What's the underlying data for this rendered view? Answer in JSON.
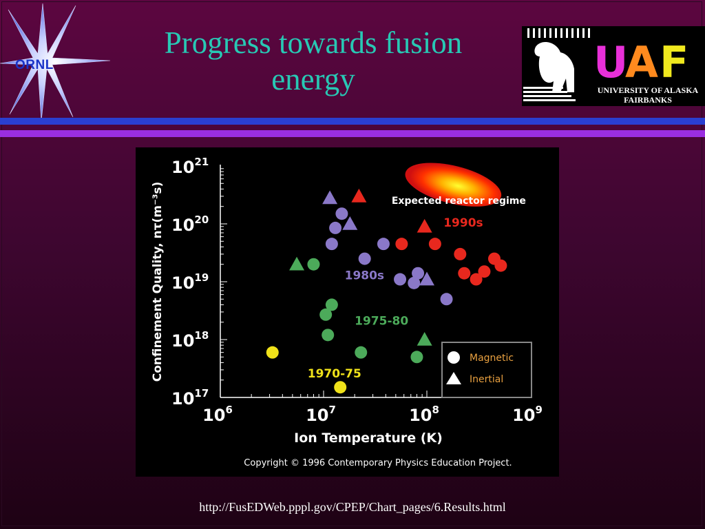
{
  "slide": {
    "title": "Progress towards fusion energy",
    "url": "http://FusEDWeb.pppl.gov/CPEP/Chart_pages/6.Results.html"
  },
  "logos": {
    "ornl": "ORNL",
    "uaf_letters": [
      "U",
      "A",
      "F"
    ],
    "uaf_name_line1": "UNIVERSITY OF ALASKA",
    "uaf_name_line2": "FAIRBANKS"
  },
  "colors": {
    "title": "#28c8b4",
    "magnetic_1970_75": "#f0e21a",
    "magnetic_1975_80": "#4caa5a",
    "magnetic_1980s": "#8a78c8",
    "magnetic_1990s": "#e8281e"
  },
  "chart_data": {
    "type": "scatter",
    "xlabel": "Ion Temperature (K)",
    "ylabel": "Confinement Quality, nτ(m⁻³s)",
    "x_scale": "log",
    "y_scale": "log",
    "xlim": [
      1000000.0,
      1000000000.0
    ],
    "ylim": [
      1e+17,
      1e+21
    ],
    "x_ticks": [
      {
        "value": 1000000.0,
        "mant": "10",
        "exp": "6"
      },
      {
        "value": 10000000.0,
        "mant": "10",
        "exp": "7"
      },
      {
        "value": 100000000.0,
        "mant": "10",
        "exp": "8"
      },
      {
        "value": 1000000000.0,
        "mant": "10",
        "exp": "9"
      }
    ],
    "y_ticks": [
      {
        "value": 1e+17,
        "mant": "10",
        "exp": "17"
      },
      {
        "value": 1e+18,
        "mant": "10",
        "exp": "18"
      },
      {
        "value": 1e+19,
        "mant": "10",
        "exp": "19"
      },
      {
        "value": 1e+20,
        "mant": "10",
        "exp": "20"
      },
      {
        "value": 1e+21,
        "mant": "10",
        "exp": "21"
      }
    ],
    "grid": false,
    "legend": {
      "placement": "bottom-right",
      "entries": [
        "Magnetic",
        "Inertial"
      ]
    },
    "region": {
      "label": "Expected reactor regime",
      "x_range": [
        60000000.0,
        1000000000.0
      ],
      "y_range": [
        2.5e+20,
        9e+20
      ]
    },
    "copyright": "Copyright © 1996 Contemporary Physics Education Project.",
    "series": [
      {
        "name": "1970-75",
        "color": "#f0e21a",
        "label_pos": {
          "x": 7000000.0,
          "y": 2.2e+17
        },
        "magnetic": [
          [
            3200000.0,
            6e+17
          ],
          [
            14500000.0,
            1.5e+17
          ]
        ],
        "inertial": []
      },
      {
        "name": "1975-80",
        "color": "#4caa5a",
        "label_pos": {
          "x": 20000000.0,
          "y": 1.8e+18
        },
        "magnetic": [
          [
            8000000.0,
            2e+19
          ],
          [
            12000000.0,
            4e+18
          ],
          [
            10500000.0,
            2.7e+18
          ],
          [
            11000000.0,
            1.2e+18
          ],
          [
            23000000.0,
            6e+17
          ],
          [
            80000000.0,
            5e+17
          ]
        ],
        "inertial": [
          [
            5500000.0,
            2e+19
          ],
          [
            95000000.0,
            1e+18
          ]
        ]
      },
      {
        "name": "1980s",
        "color": "#8a78c8",
        "label_pos": {
          "x": 16000000.0,
          "y": 1.1e+19
        },
        "magnetic": [
          [
            15000000.0,
            1.5e+20
          ],
          [
            13000000.0,
            8.5e+19
          ],
          [
            12000000.0,
            4.5e+19
          ],
          [
            25000000.0,
            2.5e+19
          ],
          [
            38000000.0,
            4.5e+19
          ],
          [
            55000000.0,
            1.1e+19
          ],
          [
            75000000.0,
            9.5e+18
          ],
          [
            82000000.0,
            1.4e+19
          ],
          [
            155000000.0,
            5e+18
          ]
        ],
        "inertial": [
          [
            11500000.0,
            2.8e+20
          ],
          [
            18000000.0,
            1e+20
          ],
          [
            100000000.0,
            1.1e+19
          ]
        ]
      },
      {
        "name": "1990s",
        "color": "#e8281e",
        "label_pos": {
          "x": 145000000.0,
          "y": 9e+19
        },
        "magnetic": [
          [
            57000000.0,
            4.5e+19
          ],
          [
            120000000.0,
            4.5e+19
          ],
          [
            210000000.0,
            3e+19
          ],
          [
            230000000.0,
            1.4e+19
          ],
          [
            300000000.0,
            1.1e+19
          ],
          [
            360000000.0,
            1.5e+19
          ],
          [
            450000000.0,
            2.5e+19
          ],
          [
            520000000.0,
            1.9e+19
          ]
        ],
        "inertial": [
          [
            22000000.0,
            3e+20
          ],
          [
            95000000.0,
            9e+19
          ]
        ]
      }
    ]
  }
}
